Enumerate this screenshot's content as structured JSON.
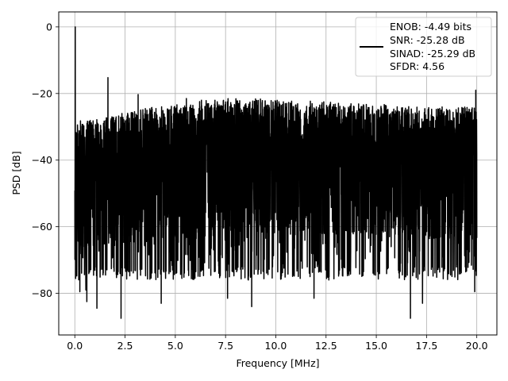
{
  "chart_data": {
    "type": "line",
    "xlabel": "Frequency [MHz]",
    "ylabel": "PSD [dB]",
    "xlim": [
      -0.8,
      21.0
    ],
    "ylim": [
      -92.5,
      4.5
    ],
    "x_ticks": [
      0.0,
      2.5,
      5.0,
      7.5,
      10.0,
      12.5,
      15.0,
      17.5,
      20.0
    ],
    "x_tick_labels": [
      "0.0",
      "2.5",
      "5.0",
      "7.5",
      "10.0",
      "12.5",
      "15.0",
      "17.5",
      "20.0"
    ],
    "y_ticks": [
      0,
      -20,
      -40,
      -60,
      -80
    ],
    "y_tick_labels": [
      "0",
      "−20",
      "−40",
      "−60",
      "−80"
    ],
    "grid": true,
    "legend_position": "top-right",
    "series": [
      {
        "color": "#000000",
        "legend_lines": [
          "ENOB: -4.49 bits",
          "SNR: -25.28 dB",
          "SINAD: -25.29 dB",
          "SFDR: 4.56"
        ],
        "upper_envelope": [
          [
            0.0,
            -30
          ],
          [
            0.3,
            -28
          ],
          [
            1.0,
            -27.5
          ],
          [
            2.0,
            -26.5
          ],
          [
            3.0,
            -25
          ],
          [
            4.0,
            -24
          ],
          [
            5.0,
            -23
          ],
          [
            6.0,
            -22
          ],
          [
            7.5,
            -21.5
          ],
          [
            9.0,
            -21.5
          ],
          [
            10.0,
            -22
          ],
          [
            11.0,
            -22
          ],
          [
            12.5,
            -22.5
          ],
          [
            14.0,
            -23
          ],
          [
            15.0,
            -23
          ],
          [
            16.0,
            -23.5
          ],
          [
            17.5,
            -24
          ],
          [
            18.5,
            -24
          ],
          [
            19.5,
            -24
          ],
          [
            20.0,
            -24
          ]
        ],
        "peaks": [
          [
            0.02,
            0.0
          ],
          [
            1.65,
            -15.2
          ],
          [
            3.15,
            -20.3
          ],
          [
            5.55,
            -21.5
          ],
          [
            7.6,
            -20.5
          ],
          [
            19.95,
            -19.0
          ]
        ],
        "deep_nulls": [
          [
            0.25,
            -79.5
          ],
          [
            0.55,
            -79.0
          ],
          [
            0.6,
            -82.5
          ],
          [
            1.1,
            -84.5
          ],
          [
            2.3,
            -87.5
          ],
          [
            4.3,
            -83.0
          ],
          [
            7.6,
            -81.5
          ],
          [
            8.8,
            -84.0
          ],
          [
            11.9,
            -81.5
          ],
          [
            16.7,
            -87.5
          ],
          [
            17.3,
            -83.0
          ],
          [
            19.9,
            -79.5
          ]
        ]
      }
    ]
  }
}
